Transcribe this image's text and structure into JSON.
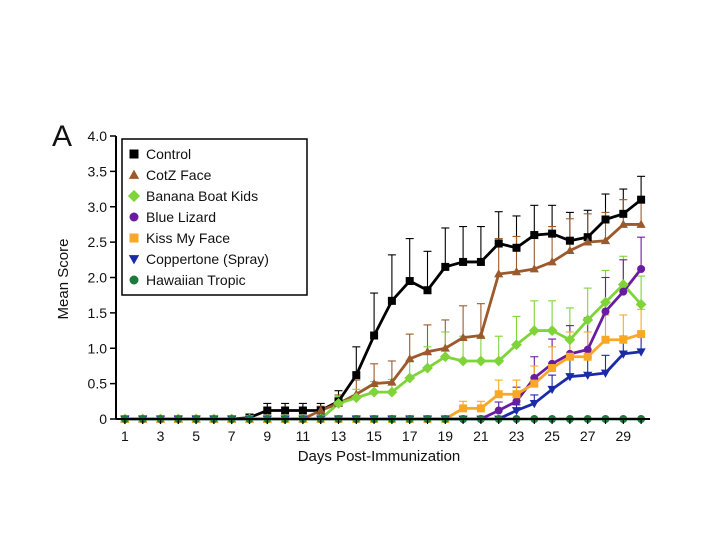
{
  "chart_data": {
    "type": "line",
    "panel_label": "A",
    "xlabel": "Days Post-Immunization",
    "ylabel": "Mean Score",
    "xlim": [
      0.5,
      30.5
    ],
    "ylim": [
      0,
      4.0
    ],
    "x_ticks": [
      1,
      3,
      5,
      7,
      9,
      11,
      13,
      15,
      17,
      19,
      21,
      23,
      25,
      27,
      29
    ],
    "y_ticks": [
      {
        "v": 0,
        "label": "0"
      },
      {
        "v": 0.5,
        "label": "0.5"
      },
      {
        "v": 1.0,
        "label": "1.0"
      },
      {
        "v": 1.5,
        "label": "1.5"
      },
      {
        "v": 2.0,
        "label": "2.0"
      },
      {
        "v": 2.5,
        "label": "2.5"
      },
      {
        "v": 3.0,
        "label": "3.0"
      },
      {
        "v": 3.5,
        "label": "3.5"
      },
      {
        "v": 4.0,
        "label": "4.0"
      }
    ],
    "x": [
      1,
      2,
      3,
      4,
      5,
      6,
      7,
      8,
      9,
      10,
      11,
      12,
      13,
      14,
      15,
      16,
      17,
      18,
      19,
      20,
      21,
      22,
      23,
      24,
      25,
      26,
      27,
      28,
      29,
      30
    ],
    "legend_position": "top-left",
    "series": [
      {
        "name": "Control",
        "color": "#000000",
        "marker": "square",
        "values": [
          0,
          0,
          0,
          0,
          0,
          0,
          0,
          0.02,
          0.12,
          0.12,
          0.12,
          0.12,
          0.25,
          0.62,
          1.18,
          1.67,
          1.95,
          1.82,
          2.15,
          2.22,
          2.22,
          2.48,
          2.42,
          2.6,
          2.62,
          2.52,
          2.57,
          2.82,
          2.9,
          3.1
        ],
        "errors": [
          0,
          0,
          0,
          0,
          0,
          0,
          0,
          0.05,
          0.1,
          0.1,
          0.1,
          0.1,
          0.15,
          0.4,
          0.6,
          0.65,
          0.6,
          0.55,
          0.55,
          0.5,
          0.5,
          0.45,
          0.45,
          0.42,
          0.4,
          0.4,
          0.38,
          0.36,
          0.35,
          0.33
        ]
      },
      {
        "name": "CotZ Face",
        "color": "#9c5a2c",
        "marker": "triangle",
        "values": [
          0,
          0,
          0,
          0,
          0,
          0,
          0,
          0,
          0,
          0,
          0,
          0.12,
          0.22,
          0.35,
          0.5,
          0.52,
          0.85,
          0.95,
          1.0,
          1.15,
          1.18,
          2.05,
          2.08,
          2.12,
          2.22,
          2.38,
          2.5,
          2.52,
          2.75,
          2.75
        ],
        "errors": [
          0,
          0,
          0,
          0,
          0,
          0,
          0,
          0,
          0,
          0,
          0,
          0.06,
          0.12,
          0.2,
          0.28,
          0.3,
          0.35,
          0.38,
          0.4,
          0.45,
          0.45,
          0.5,
          0.5,
          0.5,
          0.5,
          0.45,
          0.4,
          0.4,
          0.35,
          0.35
        ]
      },
      {
        "name": "Banana Boat Kids",
        "color": "#7fd43a",
        "marker": "diamond",
        "values": [
          0,
          0,
          0,
          0,
          0,
          0,
          0,
          0,
          0,
          0,
          0,
          0,
          0.22,
          0.3,
          0.38,
          0.38,
          0.58,
          0.72,
          0.88,
          0.82,
          0.82,
          0.82,
          1.05,
          1.25,
          1.25,
          1.12,
          1.4,
          1.65,
          1.9,
          1.62
        ],
        "errors": [
          0,
          0,
          0,
          0,
          0,
          0,
          0,
          0,
          0,
          0,
          0,
          0,
          0.1,
          0.12,
          0.15,
          0.18,
          0.25,
          0.3,
          0.35,
          0.35,
          0.35,
          0.35,
          0.4,
          0.42,
          0.42,
          0.45,
          0.45,
          0.45,
          0.4,
          0.4
        ]
      },
      {
        "name": "Blue Lizard",
        "color": "#6a1ca0",
        "marker": "circle",
        "values": [
          0,
          0,
          0,
          0,
          0,
          0,
          0,
          0,
          0,
          0,
          0,
          0,
          0,
          0,
          0,
          0,
          0,
          0,
          0,
          0,
          0,
          0.12,
          0.25,
          0.58,
          0.78,
          0.92,
          0.98,
          1.52,
          1.8,
          2.12
        ],
        "errors": [
          0,
          0,
          0,
          0,
          0,
          0,
          0,
          0,
          0,
          0,
          0,
          0,
          0,
          0,
          0,
          0,
          0,
          0,
          0,
          0,
          0,
          0.12,
          0.2,
          0.3,
          0.35,
          0.4,
          0.45,
          0.48,
          0.45,
          0.45
        ]
      },
      {
        "name": "Kiss My Face",
        "color": "#f9a825",
        "marker": "square",
        "values": [
          0,
          0,
          0,
          0,
          0,
          0,
          0,
          0,
          0,
          0,
          0,
          0,
          0,
          0,
          0,
          0,
          0,
          0,
          0,
          0.15,
          0.15,
          0.35,
          0.35,
          0.5,
          0.72,
          0.88,
          0.88,
          1.12,
          1.12,
          1.2
        ],
        "errors": [
          0,
          0,
          0,
          0,
          0,
          0,
          0,
          0,
          0,
          0,
          0,
          0,
          0,
          0,
          0,
          0,
          0,
          0,
          0,
          0.1,
          0.1,
          0.2,
          0.2,
          0.25,
          0.3,
          0.35,
          0.35,
          0.35,
          0.35,
          0.35
        ]
      },
      {
        "name": "Coppertone (Spray)",
        "color": "#1a2aa8",
        "marker": "triangle-down",
        "values": [
          0,
          0,
          0,
          0,
          0,
          0,
          0,
          0,
          0,
          0,
          0,
          0,
          0,
          0,
          0,
          0,
          0,
          0,
          0,
          0,
          0,
          0,
          0.12,
          0.22,
          0.42,
          0.6,
          0.62,
          0.65,
          0.92,
          0.95
        ],
        "errors": [
          0,
          0,
          0,
          0,
          0,
          0,
          0,
          0,
          0,
          0,
          0,
          0,
          0,
          0,
          0,
          0,
          0,
          0,
          0,
          0,
          0,
          0,
          0.08,
          0.12,
          0.2,
          0.25,
          0.25,
          0.25,
          0.25,
          0.25
        ]
      },
      {
        "name": "Hawaiian Tropic",
        "color": "#1e7a3a",
        "marker": "circle",
        "values": [
          0,
          0,
          0,
          0,
          0,
          0,
          0,
          0,
          0,
          0,
          0,
          0,
          0,
          0,
          0,
          0,
          0,
          0,
          0,
          0,
          0,
          0,
          0,
          0,
          0,
          0,
          0,
          0,
          0,
          0
        ],
        "errors": [
          0,
          0,
          0,
          0,
          0,
          0,
          0,
          0,
          0,
          0,
          0,
          0,
          0,
          0,
          0,
          0,
          0,
          0,
          0,
          0,
          0,
          0,
          0,
          0,
          0,
          0,
          0,
          0,
          0,
          0
        ]
      }
    ]
  }
}
